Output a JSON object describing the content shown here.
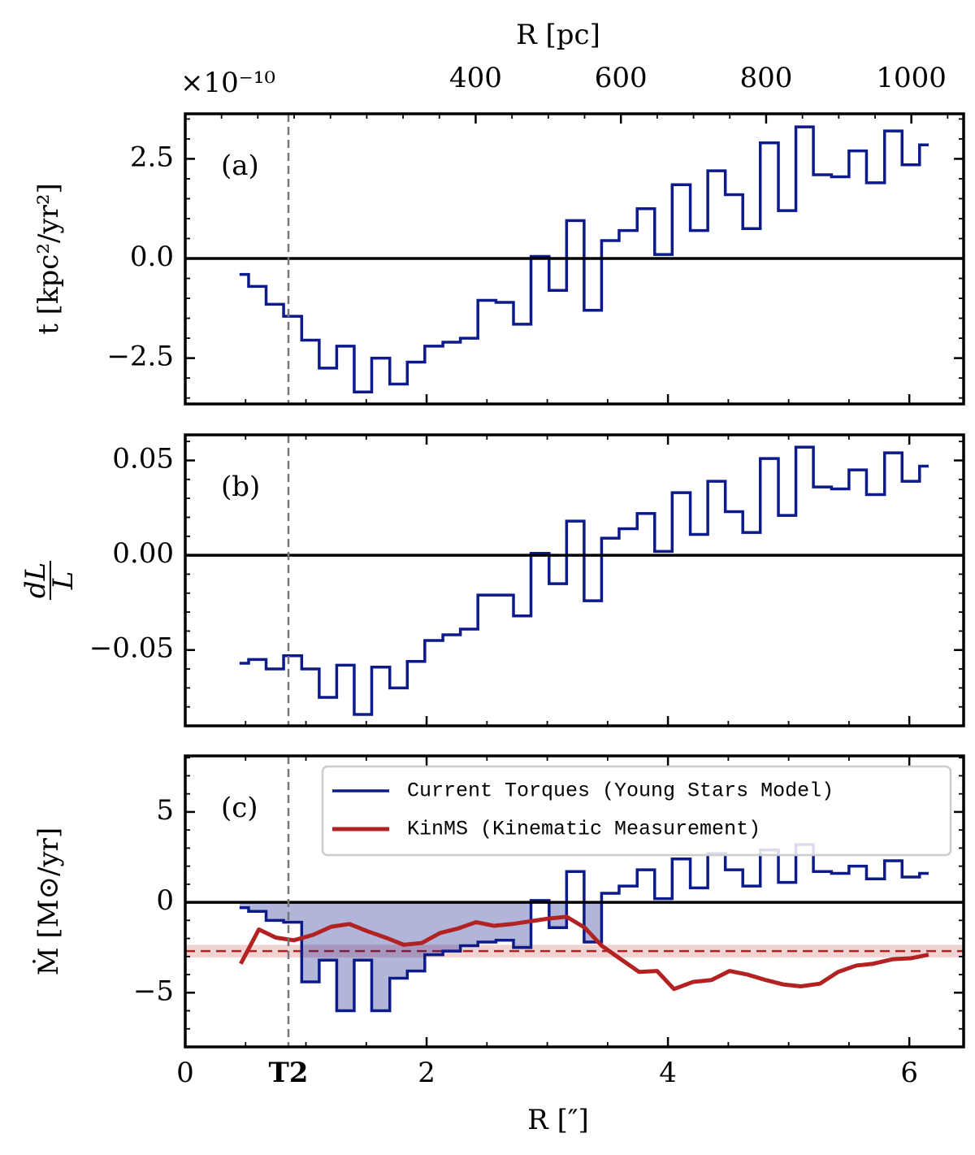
{
  "chart_data": [
    {
      "type": "step",
      "panel_label": "(a)",
      "ylabel": "t [kpc²/yr²]",
      "multiplier": "×10⁻¹⁰",
      "x2label": "R [pc]",
      "x2lim": [
        0,
        1072
      ],
      "x2ticks": [
        400,
        600,
        800,
        1000
      ],
      "xlim": [
        0,
        6.45
      ],
      "xticks": [
        0,
        2,
        4,
        6
      ],
      "ylim": [
        -3.65,
        3.63
      ],
      "yticks": [
        {
          "value": -2.5,
          "label": "−2.5"
        },
        {
          "value": 0,
          "label": "0.0"
        },
        2.5
      ],
      "axhline": 0,
      "vline": 0.855,
      "x": [
        0.45,
        0.6,
        0.74,
        0.89,
        1.04,
        1.18,
        1.33,
        1.47,
        1.62,
        1.77,
        1.91,
        2.06,
        2.21,
        2.35,
        2.5,
        2.65,
        2.79,
        2.94,
        3.09,
        3.23,
        3.38,
        3.52,
        3.67,
        3.82,
        3.96,
        4.11,
        4.26,
        4.4,
        4.55,
        4.69,
        4.84,
        4.99,
        5.13,
        5.28,
        5.43,
        5.57,
        5.72,
        5.87,
        6.01,
        6.16
      ],
      "series": [
        {
          "color": "#0d1a8c",
          "values": [
            -0.4,
            -0.7,
            -1.15,
            -1.45,
            -2.05,
            -2.75,
            -2.2,
            -3.35,
            -2.5,
            -3.15,
            -2.6,
            -2.2,
            -2.1,
            -2.0,
            -1.05,
            -1.1,
            -1.65,
            0.05,
            -0.8,
            0.95,
            -1.3,
            0.45,
            0.7,
            1.25,
            0.1,
            1.85,
            0.7,
            2.2,
            1.6,
            0.75,
            2.9,
            1.2,
            3.3,
            2.1,
            2.05,
            2.7,
            1.9,
            3.2,
            2.35,
            2.85
          ]
        }
      ]
    },
    {
      "type": "step",
      "panel_label": "(b)",
      "ylabel": {
        "numerator": "dL",
        "denominator": "L"
      },
      "xlim": [
        0,
        6.45
      ],
      "xticks": [
        0,
        2,
        4,
        6
      ],
      "ylim": [
        -0.09,
        0.0635
      ],
      "yticks": [
        {
          "value": -0.05,
          "label": "−0.05"
        },
        {
          "value": 0,
          "label": "0.00"
        },
        0.05
      ],
      "axhline": 0,
      "vline": 0.855,
      "x": [
        0.45,
        0.6,
        0.74,
        0.89,
        1.04,
        1.18,
        1.33,
        1.47,
        1.62,
        1.77,
        1.91,
        2.06,
        2.21,
        2.35,
        2.5,
        2.65,
        2.79,
        2.94,
        3.09,
        3.23,
        3.38,
        3.52,
        3.67,
        3.82,
        3.96,
        4.11,
        4.26,
        4.4,
        4.55,
        4.69,
        4.84,
        4.99,
        5.13,
        5.28,
        5.43,
        5.57,
        5.72,
        5.87,
        6.01,
        6.16
      ],
      "series": [
        {
          "color": "#0d1a8c",
          "values": [
            -0.057,
            -0.055,
            -0.06,
            -0.053,
            -0.06,
            -0.075,
            -0.058,
            -0.084,
            -0.059,
            -0.07,
            -0.056,
            -0.045,
            -0.042,
            -0.039,
            -0.021,
            -0.021,
            -0.032,
            0.001,
            -0.015,
            0.018,
            -0.024,
            0.009,
            0.014,
            0.022,
            0.002,
            0.033,
            0.011,
            0.039,
            0.023,
            0.012,
            0.051,
            0.021,
            0.057,
            0.036,
            0.035,
            0.045,
            0.032,
            0.054,
            0.039,
            0.047
          ]
        }
      ]
    },
    {
      "type": "step",
      "panel_label": "(c)",
      "ylabel": "Ṁ [M⊙/yr]",
      "xlabel": "R [″]",
      "vline_label": "T2",
      "xlim": [
        0,
        6.45
      ],
      "xticks": [
        0,
        2,
        4,
        6
      ],
      "ylim": [
        -8,
        8.1
      ],
      "yticks": [
        {
          "value": -5,
          "label": "−5"
        },
        0,
        5
      ],
      "axhline": 0,
      "vline": 0.855,
      "fill_negative": true,
      "legend": "upper right",
      "band": {
        "value": -2.7,
        "lower": -3.05,
        "upper": -2.35,
        "color": "#b22222"
      },
      "x": [
        0.45,
        0.6,
        0.74,
        0.89,
        1.04,
        1.18,
        1.33,
        1.47,
        1.62,
        1.77,
        1.91,
        2.06,
        2.21,
        2.35,
        2.5,
        2.65,
        2.79,
        2.94,
        3.09,
        3.23,
        3.38,
        3.52,
        3.67,
        3.82,
        3.96,
        4.11,
        4.26,
        4.4,
        4.55,
        4.69,
        4.84,
        4.99,
        5.13,
        5.28,
        5.43,
        5.57,
        5.72,
        5.87,
        6.01,
        6.16
      ],
      "series": [
        {
          "name": "Current Torques (Young Stars Model)",
          "type": "step",
          "color": "#0d1a8c",
          "values": [
            -0.3,
            -0.5,
            -1.0,
            -1.1,
            -4.4,
            -3.2,
            -6.0,
            -3.2,
            -6.0,
            -4.2,
            -3.8,
            -2.9,
            -2.7,
            -2.4,
            -2.2,
            -2.1,
            -2.5,
            0.1,
            -1.4,
            1.7,
            -2.2,
            0.5,
            0.9,
            1.8,
            0.2,
            2.4,
            0.8,
            2.7,
            1.8,
            0.9,
            2.9,
            1.1,
            3.2,
            1.7,
            1.6,
            2.0,
            1.3,
            2.3,
            1.4,
            1.6
          ]
        },
        {
          "name": "KinMS (Kinematic Measurement)",
          "type": "line",
          "color": "#b22222",
          "x": [
            0.46,
            0.61,
            0.75,
            0.9,
            1.06,
            1.21,
            1.36,
            1.51,
            1.66,
            1.81,
            1.96,
            2.11,
            2.26,
            2.41,
            2.56,
            2.71,
            2.86,
            3.01,
            3.16,
            3.31,
            3.45,
            3.61,
            3.76,
            3.91,
            4.05,
            4.21,
            4.36,
            4.51,
            4.66,
            4.81,
            4.96,
            5.1,
            5.26,
            5.41,
            5.56,
            5.7,
            5.86,
            6.01,
            6.16
          ],
          "values": [
            -3.4,
            -1.5,
            -1.95,
            -2.1,
            -1.8,
            -1.35,
            -1.2,
            -1.6,
            -1.95,
            -2.35,
            -2.25,
            -1.7,
            -1.45,
            -1.1,
            -1.3,
            -1.2,
            -1.05,
            -0.9,
            -0.8,
            -1.4,
            -2.4,
            -3.15,
            -3.85,
            -3.8,
            -4.8,
            -4.4,
            -4.3,
            -3.8,
            -4.0,
            -4.3,
            -4.55,
            -4.65,
            -4.5,
            -3.85,
            -3.5,
            -3.4,
            -3.15,
            -3.1,
            -2.9
          ]
        }
      ]
    }
  ]
}
